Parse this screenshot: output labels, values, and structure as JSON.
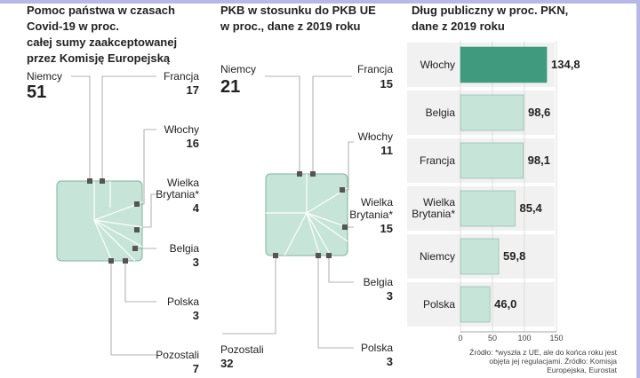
{
  "colors": {
    "tile": "#c6e4d8",
    "tileBorder": "#7fb5a2",
    "highlight": "#3f9a7e",
    "line": "#9a9a9a",
    "dot": "#555555",
    "bandBg": "#f1f1f1"
  },
  "chart_data": [
    {
      "type": "treemap",
      "title": "Pomoc państwa w czasach Covid-19 w proc. całej sumy zaakceptowanej przez Komisję Europejską",
      "title_lines": [
        "Pomoc państwa w czasach",
        "Covid-19 w proc.",
        "całej sumy zaakceptowanej",
        "przez Komisję Europejską"
      ],
      "items": [
        {
          "label": "Niemcy",
          "value": 51,
          "display": "51"
        },
        {
          "label": "Francja",
          "value": 17,
          "display": "17"
        },
        {
          "label": "Włochy",
          "value": 16,
          "display": "16"
        },
        {
          "label": "Wielka Brytania*",
          "label_lines": [
            "Wielka",
            "Brytania*"
          ],
          "value": 4,
          "display": "4"
        },
        {
          "label": "Belgia",
          "value": 3,
          "display": "3"
        },
        {
          "label": "Polska",
          "value": 3,
          "display": "3"
        },
        {
          "label": "Pozostali",
          "value": 7,
          "display": "7"
        }
      ]
    },
    {
      "type": "treemap",
      "title": "PKB w stosunku do PKB UE w proc., dane z 2019 roku",
      "title_lines": [
        "PKB w stosunku do PKB UE",
        "w proc., dane z 2019 roku"
      ],
      "items": [
        {
          "label": "Niemcy",
          "value": 21,
          "display": "21"
        },
        {
          "label": "Francja",
          "value": 15,
          "display": "15"
        },
        {
          "label": "Włochy",
          "value": 11,
          "display": "11"
        },
        {
          "label": "Wielka Brytania*",
          "label_lines": [
            "Wielka",
            "Brytania*"
          ],
          "value": 15,
          "display": "15"
        },
        {
          "label": "Belgia",
          "value": 3,
          "display": "3"
        },
        {
          "label": "Polska",
          "value": 3,
          "display": "3"
        },
        {
          "label": "Pozostali",
          "value": 32,
          "display": "32"
        }
      ]
    },
    {
      "type": "bar",
      "orientation": "horizontal",
      "title": "Dług publiczny w proc. PKN, dane z 2019 roku",
      "title_lines": [
        "Dług publiczny w proc. PKN,",
        "dane z 2019 roku"
      ],
      "categories": [
        "Włochy",
        "Belgia",
        "Francja",
        "Wielka Brytania*",
        "Niemcy",
        "Polska"
      ],
      "category_lines": [
        [
          "Włochy"
        ],
        [
          "Belgia"
        ],
        [
          "Francja"
        ],
        [
          "Wielka",
          "Brytania*"
        ],
        [
          "Niemcy"
        ],
        [
          "Polska"
        ]
      ],
      "values": [
        134.8,
        98.6,
        98.1,
        85.4,
        59.8,
        46.0
      ],
      "value_labels": [
        "134,8",
        "98,6",
        "98,1",
        "85,4",
        "59,8",
        "46,0"
      ],
      "highlight": "Włochy",
      "xlim": [
        0,
        150
      ],
      "xticks": [
        0,
        50,
        100,
        150
      ]
    }
  ],
  "notes": {
    "lines": [
      "Źródło: *wyszła z UE, ale do końca roku jest",
      "objęta jej regulacjami. Źródło: Komisja",
      "Europejska, Eurostat"
    ]
  }
}
